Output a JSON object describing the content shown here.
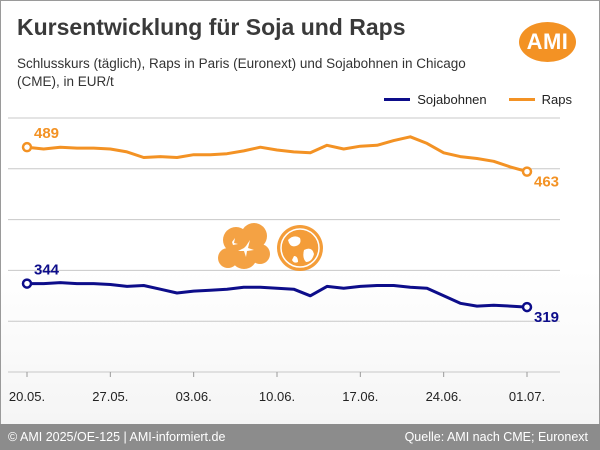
{
  "header": {
    "title": "Kursentwicklung für Soja und Raps",
    "subtitle": "Schlusskurs (täglich), Raps in Paris (Euronext) und Sojabohnen in Chicago (CME), in EUR/t",
    "logo_text": "AMI",
    "logo_color": "#f39224"
  },
  "legend": {
    "position": "top-right",
    "items": [
      {
        "label": "Sojabohnen",
        "color": "#0d0d8a"
      },
      {
        "label": "Raps",
        "color": "#f39224"
      }
    ]
  },
  "chart_data": {
    "type": "line",
    "x_ticks": [
      "20.05.",
      "27.05.",
      "03.06.",
      "10.06.",
      "17.06.",
      "24.06.",
      "01.07."
    ],
    "ylim": [
      250,
      520
    ],
    "grid": true,
    "series": [
      {
        "name": "Raps",
        "color": "#f39224",
        "values": [
          489,
          487,
          489,
          488,
          488,
          487,
          484,
          478,
          479,
          478,
          481,
          481,
          482,
          485,
          489,
          486,
          484,
          483,
          491,
          487,
          490,
          491,
          496,
          500,
          493,
          483,
          479,
          477,
          474,
          468,
          463
        ],
        "start_label": "489",
        "end_label": "463"
      },
      {
        "name": "Sojabohnen",
        "color": "#0d0d8a",
        "values": [
          344,
          344,
          345,
          344,
          344,
          343,
          341,
          342,
          338,
          334,
          336,
          337,
          338,
          340,
          340,
          339,
          338,
          331,
          341,
          339,
          341,
          342,
          342,
          340,
          339,
          331,
          323,
          320,
          321,
          320,
          319
        ],
        "start_label": "344",
        "end_label": "319"
      }
    ]
  },
  "footer": {
    "left": "© AMI 2025/OE-125 | AMI-informiert.de",
    "right": "Quelle: AMI nach CME; Euronext"
  }
}
